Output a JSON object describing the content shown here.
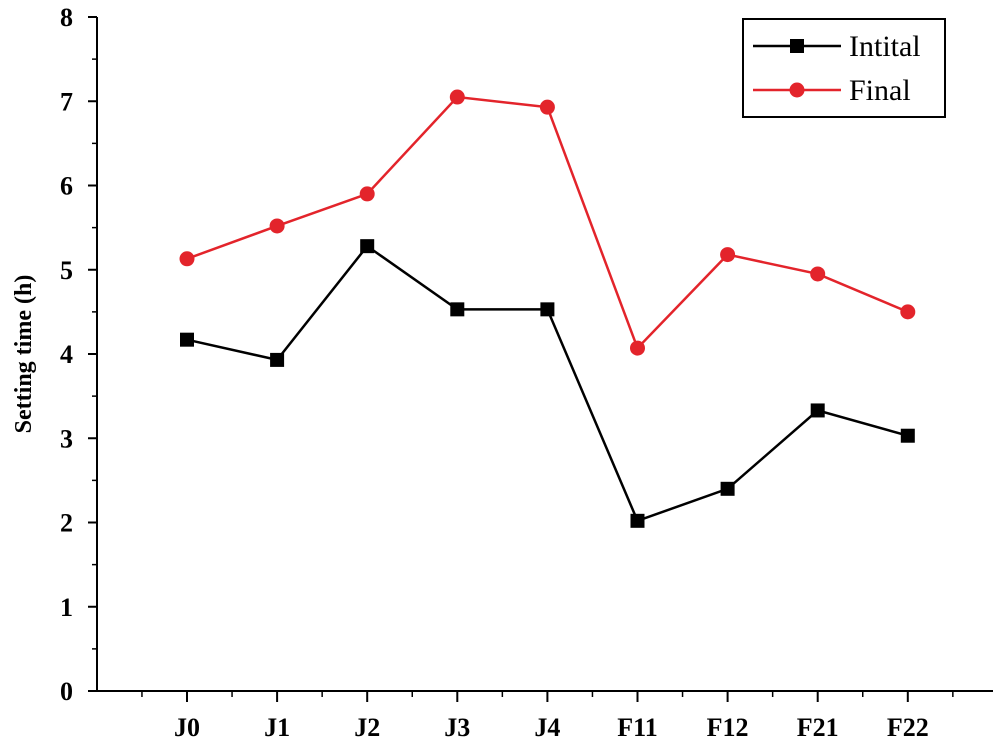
{
  "chart_data": {
    "type": "line",
    "title": "",
    "xlabel": "",
    "ylabel": "Setting time (h)",
    "categories": [
      "J0",
      "J1",
      "J2",
      "J3",
      "J4",
      "F11",
      "F12",
      "F21",
      "F22"
    ],
    "ylim": [
      0,
      8
    ],
    "yticks": [
      "0",
      "1",
      "2",
      "3",
      "4",
      "5",
      "6",
      "7",
      "8"
    ],
    "grid": false,
    "legend_position": "top-right",
    "series": [
      {
        "name": "Intital",
        "color": "#000000",
        "marker": "square",
        "values": [
          4.17,
          3.93,
          5.28,
          4.53,
          4.53,
          2.02,
          2.4,
          3.33,
          3.03
        ]
      },
      {
        "name": "Final",
        "color": "#e3242b",
        "marker": "circle",
        "values": [
          5.13,
          5.52,
          5.9,
          7.05,
          6.93,
          4.07,
          5.18,
          4.95,
          4.5
        ]
      }
    ]
  }
}
